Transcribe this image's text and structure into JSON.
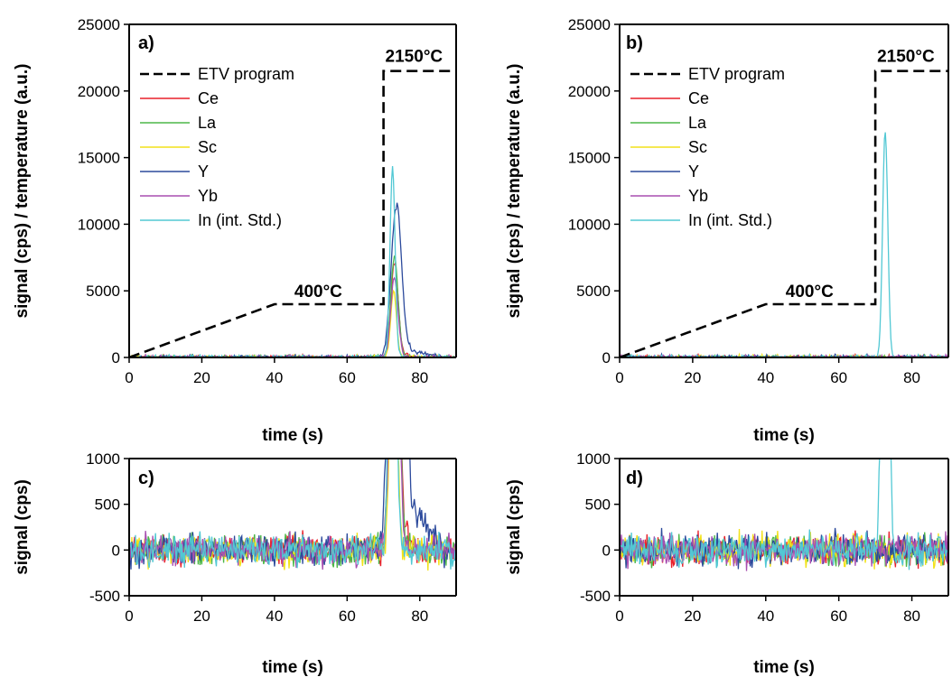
{
  "colors": {
    "ETV program": "#000000",
    "Ce": "#e8202a",
    "La": "#4db748",
    "Sc": "#f2e21a",
    "Y": "#2c4a9c",
    "Yb": "#a84fb0",
    "In (int. Std.)": "#52c8d4"
  },
  "chart_data": [
    {
      "panel": "a)",
      "type": "line",
      "xlabel": "time (s)",
      "ylabel": "signal (cps) / temperature (a.u.)",
      "xlim": [
        0,
        90
      ],
      "ylim": [
        0,
        25000
      ],
      "xticks": [
        0,
        20,
        40,
        60,
        80
      ],
      "yticks": [
        0,
        5000,
        10000,
        15000,
        20000,
        25000
      ],
      "legend": [
        "ETV program",
        "Ce",
        "La",
        "Sc",
        "Y",
        "Yb",
        "In (int. Std.)"
      ],
      "annotations": [
        "400°C",
        "2150°C"
      ],
      "etv_program": {
        "x": [
          0,
          40,
          70,
          70,
          90
        ],
        "y": [
          0,
          4000,
          4000,
          21500,
          21500
        ]
      },
      "peaks": [
        {
          "name": "In (int. Std.)",
          "center": 72.5,
          "height": 14300,
          "width": 0.7
        },
        {
          "name": "Y",
          "center": 73.5,
          "height": 11200,
          "width": 1.4
        },
        {
          "name": "La",
          "center": 73.0,
          "height": 7500,
          "width": 1.0
        },
        {
          "name": "Yb",
          "center": 73.0,
          "height": 6000,
          "width": 1.0
        },
        {
          "name": "Sc",
          "center": 72.8,
          "height": 5000,
          "width": 0.8
        },
        {
          "name": "Ce",
          "center": 73.0,
          "height": 7000,
          "width": 1.0
        }
      ],
      "tails": {
        "Y": {
          "level": 800,
          "end": 86
        },
        "Ce": {
          "level": 300,
          "end": 80
        },
        "La": {
          "level": 150,
          "end": 78
        }
      },
      "noise_level": 120
    },
    {
      "panel": "b)",
      "type": "line",
      "xlabel": "time (s)",
      "ylabel": "signal (cps) / temperature (a.u.)",
      "xlim": [
        0,
        90
      ],
      "ylim": [
        0,
        25000
      ],
      "xticks": [
        0,
        20,
        40,
        60,
        80
      ],
      "yticks": [
        0,
        5000,
        10000,
        15000,
        20000,
        25000
      ],
      "legend": [
        "ETV program",
        "Ce",
        "La",
        "Sc",
        "Y",
        "Yb",
        "In (int. Std.)"
      ],
      "annotations": [
        "400°C",
        "2150°C"
      ],
      "etv_program": {
        "x": [
          0,
          40,
          70,
          70,
          90
        ],
        "y": [
          0,
          4000,
          4000,
          21500,
          21500
        ]
      },
      "peaks": [
        {
          "name": "In (int. Std.)",
          "center": 72.7,
          "height": 17100,
          "width": 0.7
        }
      ],
      "noise_level": 120
    },
    {
      "panel": "c)",
      "type": "line",
      "xlabel": "time (s)",
      "ylabel": "signal (cps)",
      "xlim": [
        0,
        90
      ],
      "ylim": [
        -500,
        1000
      ],
      "xticks": [
        0,
        20,
        40,
        60,
        80
      ],
      "yticks": [
        -500,
        0,
        500,
        1000
      ],
      "zoom_of": "a)",
      "noise_level": 120
    },
    {
      "panel": "d)",
      "type": "line",
      "xlabel": "time (s)",
      "ylabel": "signal (cps)",
      "xlim": [
        0,
        90
      ],
      "ylim": [
        -500,
        1000
      ],
      "xticks": [
        0,
        20,
        40,
        60,
        80
      ],
      "yticks": [
        -500,
        0,
        500,
        1000
      ],
      "zoom_of": "b)",
      "noise_level": 120
    }
  ]
}
